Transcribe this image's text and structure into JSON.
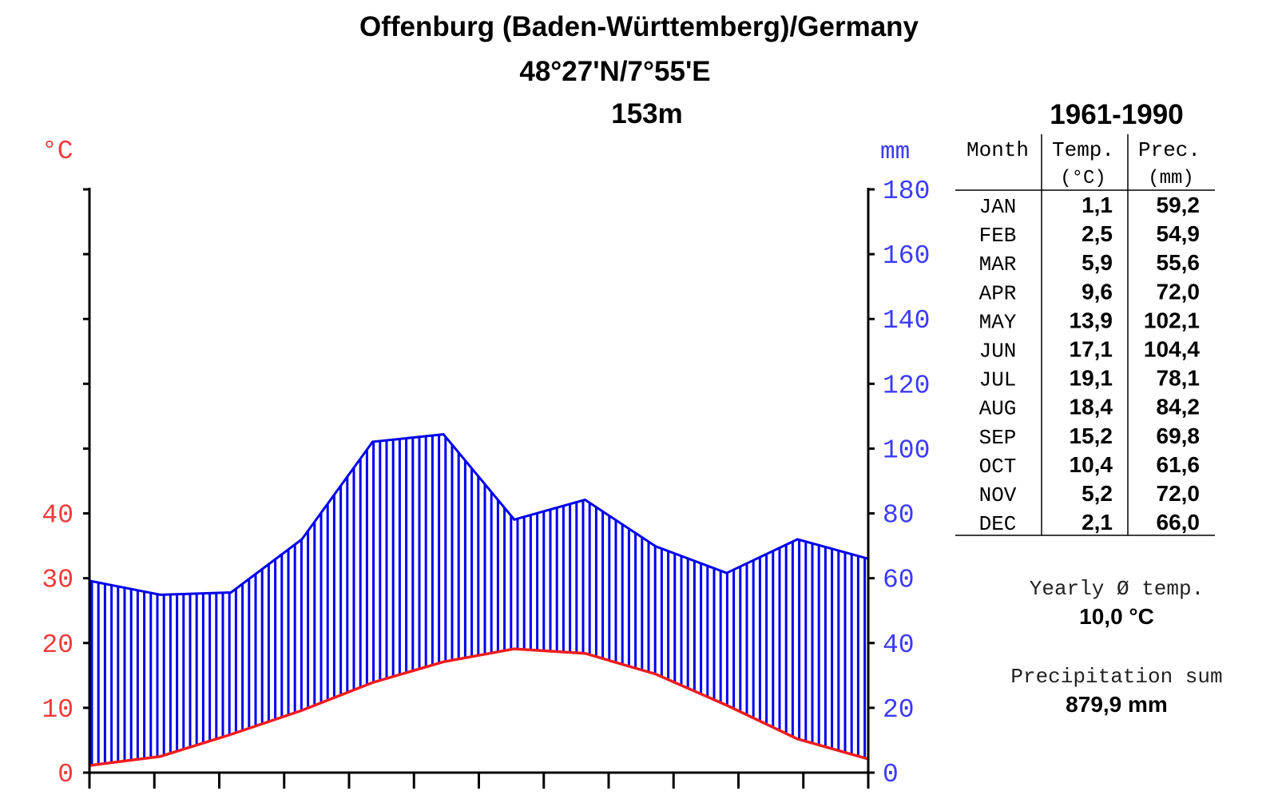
{
  "header": {
    "title": "Offenburg (Baden-Württemberg)/Germany",
    "coordinates": "48°27'N/7°55'E",
    "elevation": "153m"
  },
  "table": {
    "period": "1961-1990",
    "headers": {
      "month": "Month",
      "temp": "Temp.",
      "temp_unit": "(°C)",
      "prec": "Prec.",
      "prec_unit": "(mm)"
    },
    "rows": [
      {
        "month": "JAN",
        "temp": "1,1",
        "prec": "59,2"
      },
      {
        "month": "FEB",
        "temp": "2,5",
        "prec": "54,9"
      },
      {
        "month": "MAR",
        "temp": "5,9",
        "prec": "55,6"
      },
      {
        "month": "APR",
        "temp": "9,6",
        "prec": "72,0"
      },
      {
        "month": "MAY",
        "temp": "13,9",
        "prec": "102,1"
      },
      {
        "month": "JUN",
        "temp": "17,1",
        "prec": "104,4"
      },
      {
        "month": "JUL",
        "temp": "19,1",
        "prec": "78,1"
      },
      {
        "month": "AUG",
        "temp": "18,4",
        "prec": "84,2"
      },
      {
        "month": "SEP",
        "temp": "15,2",
        "prec": "69,8"
      },
      {
        "month": "OCT",
        "temp": "10,4",
        "prec": "61,6"
      },
      {
        "month": "NOV",
        "temp": "5,2",
        "prec": "72,0"
      },
      {
        "month": "DEC",
        "temp": "2,1",
        "prec": "66,0"
      }
    ]
  },
  "summary": {
    "temp_label": "Yearly Ø temp.",
    "temp_value": "10,0 °C",
    "prec_label": "Precipitation sum",
    "prec_value": "879,9 mm"
  },
  "chart_data": {
    "type": "line",
    "title": "Offenburg (Baden-Württemberg)/Germany",
    "categories": [
      "JAN",
      "FEB",
      "MAR",
      "APR",
      "MAY",
      "JUN",
      "JUL",
      "AUG",
      "SEP",
      "OCT",
      "NOV",
      "DEC"
    ],
    "series": [
      {
        "axis": "left",
        "color": "#ee1c1c",
        "values": [
          1.1,
          2.5,
          5.9,
          9.6,
          13.9,
          17.1,
          19.1,
          18.4,
          15.2,
          10.4,
          5.2,
          2.1
        ]
      },
      {
        "axis": "right",
        "color": "#0000ee",
        "values": [
          59.2,
          54.9,
          55.6,
          72.0,
          102.1,
          104.4,
          78.1,
          84.2,
          69.8,
          61.6,
          72.0,
          66.0
        ]
      }
    ],
    "left_axis": {
      "label": "°C",
      "ticks": [
        "0",
        "10",
        "20",
        "30",
        "40"
      ],
      "range": [
        0,
        40
      ],
      "color": "#ee3b3b"
    },
    "right_axis": {
      "label": "mm",
      "ticks": [
        "0",
        "20",
        "40",
        "60",
        "80",
        "100",
        "120",
        "140",
        "160",
        "180"
      ],
      "range": [
        0,
        180
      ],
      "color": "#3b3bff"
    },
    "fill": "vertical-hatching between temperature and precipitation",
    "grid": false
  }
}
